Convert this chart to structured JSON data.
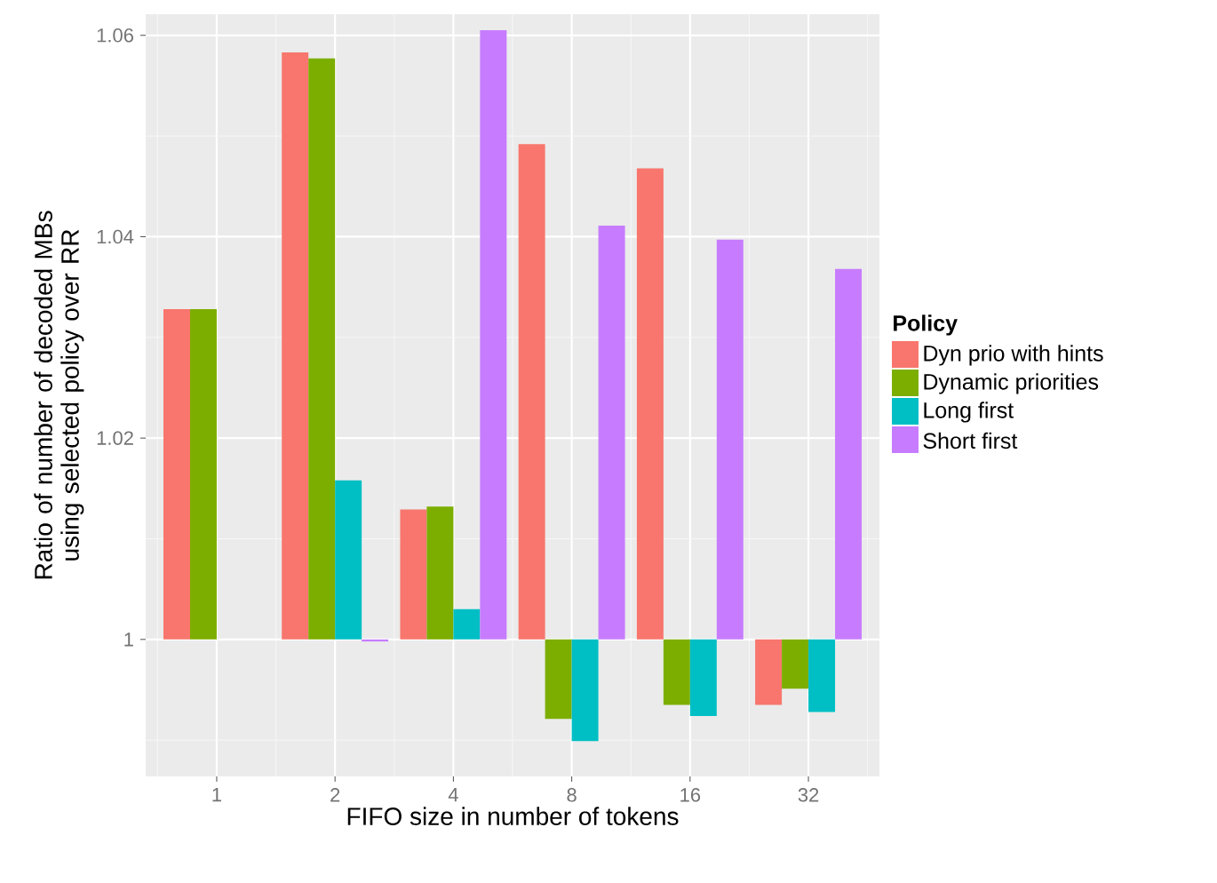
{
  "chart_data": {
    "type": "bar",
    "xlabel": "FIFO size in number of tokens",
    "ylabel": "Ratio of number of decoded MBs using selected policy over RR",
    "legend_title": "Policy",
    "categories": [
      "1",
      "2",
      "4",
      "8",
      "16",
      "32"
    ],
    "series": [
      {
        "name": "Dyn prio with hints",
        "color": "#f8766d",
        "base": [
          1,
          1,
          1,
          1,
          1,
          1
        ],
        "values": [
          0.0328,
          0.0583,
          0.0129,
          0.0492,
          0.0468,
          -0.0065
        ]
      },
      {
        "name": "Dynamic priorities",
        "color": "#7cae00",
        "base": [
          1,
          1,
          1,
          1,
          1,
          1
        ],
        "values": [
          0.0328,
          0.0577,
          0.0132,
          -0.0079,
          -0.0065,
          -0.0049
        ]
      },
      {
        "name": "Long first",
        "color": "#00bfc4",
        "base": [
          null,
          1,
          1,
          1,
          1,
          1
        ],
        "values": [
          null,
          0.0158,
          0.003,
          -0.0101,
          -0.0076,
          -0.0072
        ]
      },
      {
        "name": "Short first",
        "color": "#c77cff",
        "base": [
          null,
          1,
          1,
          1,
          1,
          1
        ],
        "values": [
          null,
          -0.0002,
          0.0605,
          0.0411,
          0.0397,
          0.0368
        ]
      }
    ],
    "ylim": [
      0.9864,
      1.0621
    ],
    "yticks": [
      {
        "value": 1,
        "label": "1"
      },
      1.02,
      1.04,
      1.06
    ],
    "grid": true,
    "legend": "right"
  }
}
